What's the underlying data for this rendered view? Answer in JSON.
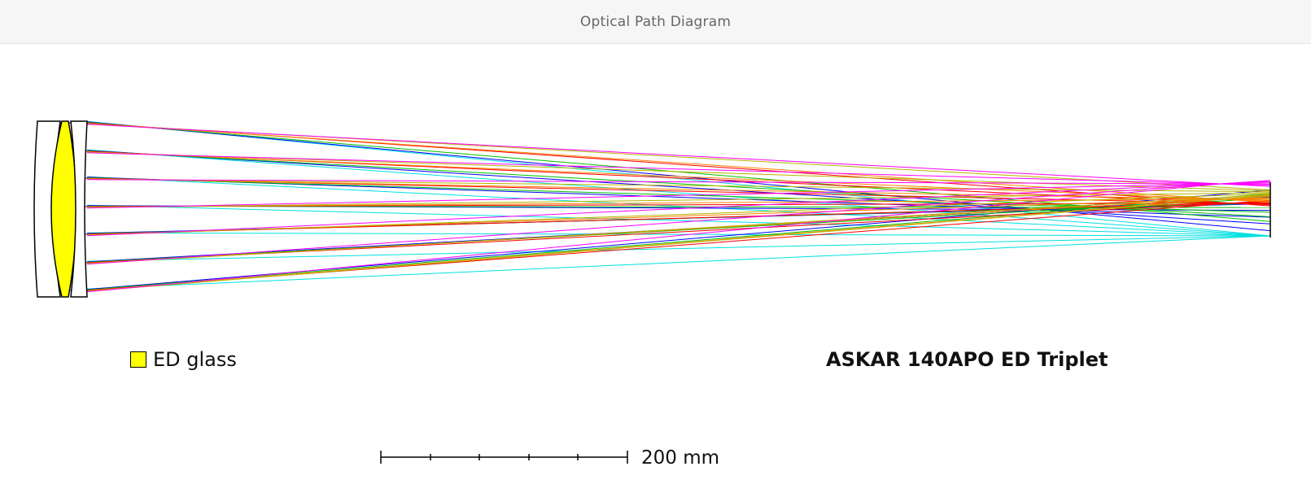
{
  "window": {
    "title": "Optical Path Diagram"
  },
  "legend": {
    "swatch_color": "#ffff00",
    "label": "ED glass"
  },
  "lens_name": "ASKAR 140APO ED Triplet",
  "scale_bar": {
    "label": "200 mm"
  },
  "ray_colors": {
    "magenta": "#ff00ff",
    "yellow": "#b4b400",
    "orange": "#ff8000",
    "red": "#ff0000",
    "green": "#00c000",
    "blue": "#0000ff",
    "cyan": "#00e0e0"
  }
}
